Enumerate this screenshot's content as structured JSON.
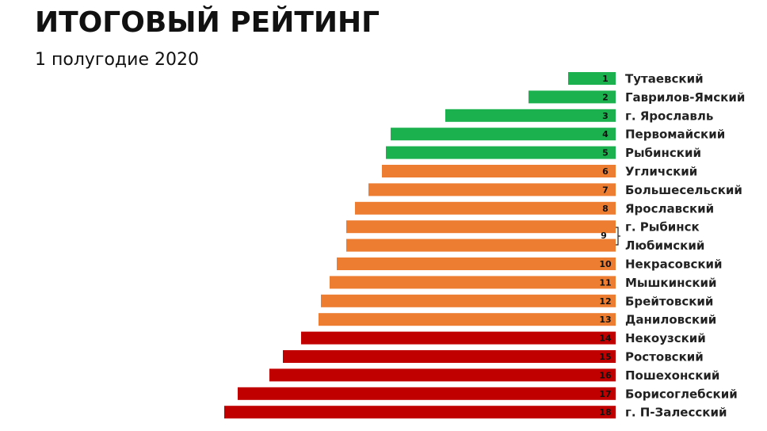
{
  "chart_data": {
    "type": "bar",
    "orientation": "horizontal",
    "title": "ИТОГОВЫЙ РЕЙТИНГ",
    "subtitle": "1 полугодие 2020",
    "categories": [
      "Тутаевский",
      "Гаврилов-Ямский",
      "г. Ярославль",
      "Первомайский",
      "Рыбинский",
      "Угличский",
      "Большесельский",
      "Ярославский",
      "г. Рыбинск",
      "Любимский",
      "Некрасовский",
      "Мышкинский",
      "Брейтовский",
      "Даниловский",
      "Некоузский",
      "Ростовский",
      "Пошехонский",
      "Борисоглебский",
      "г. П-Залесский"
    ],
    "ranks": [
      1,
      2,
      3,
      4,
      5,
      6,
      7,
      8,
      9,
      null,
      10,
      11,
      12,
      13,
      14,
      15,
      16,
      17,
      18
    ],
    "values": [
      60,
      110,
      215,
      284,
      290,
      295,
      312,
      329,
      340,
      340,
      352,
      361,
      372,
      375,
      397,
      420,
      437,
      477,
      494
    ],
    "colors": [
      "#1bb14f",
      "#1bb14f",
      "#1bb14f",
      "#1bb14f",
      "#1bb14f",
      "#ed7d31",
      "#ed7d31",
      "#ed7d31",
      "#ed7d31",
      "#ed7d31",
      "#ed7d31",
      "#ed7d31",
      "#ed7d31",
      "#ed7d31",
      "#c00000",
      "#c00000",
      "#c00000",
      "#c00000",
      "#c00000"
    ]
  }
}
